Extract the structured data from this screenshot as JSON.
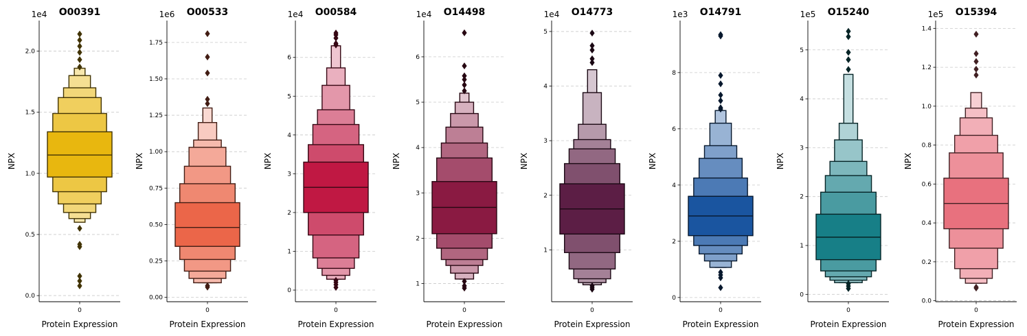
{
  "chart_data": [
    {
      "type": "boxen",
      "title": "O00391",
      "xlabel": "Protein Expression",
      "ylabel": "NPX",
      "category": "0",
      "exponent_label": "1e4",
      "ylim": [
        -0.05,
        2.25
      ],
      "yticks": [
        0.0,
        0.5,
        1.0,
        1.5,
        2.0
      ],
      "ytick_labels": [
        "0.0",
        "0.5",
        "1.0",
        "1.5",
        "2.0"
      ],
      "grid": true,
      "color": "#E8B70F",
      "median": 1.15,
      "q1": 0.97,
      "q3": 1.34,
      "lower_boxes": [
        0.85,
        0.75,
        0.68,
        0.63,
        0.6
      ],
      "upper_boxes": [
        1.49,
        1.62,
        1.7,
        1.8,
        1.86
      ],
      "outliers": [
        0.08,
        0.12,
        0.16,
        0.4,
        0.42,
        0.55,
        1.87,
        1.93,
        1.99,
        2.04,
        2.09,
        2.14
      ]
    },
    {
      "type": "boxen",
      "title": "O00533",
      "xlabel": "Protein Expression",
      "ylabel": "NPX",
      "category": "0",
      "exponent_label": "1e6",
      "ylim": [
        -0.03,
        1.9
      ],
      "yticks": [
        0.0,
        0.25,
        0.5,
        0.75,
        1.0,
        1.25,
        1.5,
        1.75
      ],
      "ytick_labels": [
        "0.00",
        "0.25",
        "0.50",
        "0.75",
        "1.00",
        "1.25",
        "1.50",
        "1.75"
      ],
      "grid": true,
      "color": "#EB6649",
      "median": 0.48,
      "q1": 0.35,
      "q3": 0.65,
      "lower_boxes": [
        0.26,
        0.18,
        0.13,
        0.1
      ],
      "upper_boxes": [
        0.78,
        0.9,
        1.03,
        1.08,
        1.2,
        1.3
      ],
      "outliers": [
        0.07,
        0.08,
        1.33,
        1.36,
        1.54,
        1.65,
        1.81
      ]
    },
    {
      "type": "boxen",
      "title": "O00584",
      "xlabel": "Protein Expression",
      "ylabel": "NPX",
      "category": "0",
      "exponent_label": "1e4",
      "ylim": [
        -0.3,
        6.95
      ],
      "yticks": [
        0,
        1,
        2,
        3,
        4,
        5,
        6
      ],
      "ytick_labels": [
        "0",
        "1",
        "2",
        "3",
        "4",
        "5",
        "6"
      ],
      "grid": true,
      "color": "#C01843",
      "median": 2.65,
      "q1": 2.0,
      "q3": 3.3,
      "lower_boxes": [
        1.42,
        0.83,
        0.56,
        0.38,
        0.28
      ],
      "upper_boxes": [
        3.75,
        4.27,
        4.65,
        5.28,
        5.73,
        6.3
      ],
      "outliers": [
        0.07,
        0.14,
        0.2,
        0.25,
        6.32,
        6.36,
        6.5,
        6.58,
        6.63
      ]
    },
    {
      "type": "boxen",
      "title": "O14498",
      "xlabel": "Protein Expression",
      "ylabel": "NPX",
      "category": "0",
      "exponent_label": "1e4",
      "ylim": [
        0.6,
        6.8
      ],
      "yticks": [
        1,
        2,
        3,
        4,
        5,
        6
      ],
      "ytick_labels": [
        "1",
        "2",
        "3",
        "4",
        "5",
        "6"
      ],
      "grid": true,
      "color": "#8A1A42",
      "median": 2.68,
      "q1": 2.1,
      "q3": 3.25,
      "lower_boxes": [
        1.78,
        1.53,
        1.4,
        1.23,
        1.1
      ],
      "upper_boxes": [
        3.77,
        4.1,
        4.45,
        4.75,
        5.0,
        5.2
      ],
      "outliers": [
        0.9,
        0.95,
        1.05,
        5.25,
        5.38,
        5.5,
        5.58,
        5.8,
        6.53
      ]
    },
    {
      "type": "boxen",
      "title": "O14773",
      "xlabel": "Protein Expression",
      "ylabel": "NPX",
      "category": "0",
      "exponent_label": "1e4",
      "ylim": [
        0.05,
        5.2
      ],
      "yticks": [
        1,
        2,
        3,
        4,
        5
      ],
      "ytick_labels": [
        "1",
        "2",
        "3",
        "4",
        "5"
      ],
      "grid": true,
      "color": "#5C1E45",
      "median": 1.75,
      "q1": 1.29,
      "q3": 2.21,
      "lower_boxes": [
        0.95,
        0.65,
        0.47,
        0.4,
        0.36
      ],
      "upper_boxes": [
        2.58,
        2.85,
        3.02,
        3.3,
        3.88,
        4.3
      ],
      "outliers": [
        0.28,
        0.31,
        0.34,
        4.43,
        4.5,
        4.66,
        4.74,
        4.97
      ]
    },
    {
      "type": "boxen",
      "title": "O14791",
      "xlabel": "Protein Expression",
      "ylabel": "NPX",
      "category": "0",
      "exponent_label": "1e3",
      "ylim": [
        -0.15,
        9.85
      ],
      "yticks": [
        0,
        2,
        4,
        6,
        8
      ],
      "ytick_labels": [
        "0",
        "2",
        "4",
        "6",
        "8"
      ],
      "grid": true,
      "color": "#1A55A0",
      "median": 2.9,
      "q1": 2.2,
      "q3": 3.6,
      "lower_boxes": [
        1.85,
        1.55,
        1.3,
        1.07
      ],
      "upper_boxes": [
        4.25,
        4.95,
        5.4,
        6.2,
        6.65
      ],
      "outliers": [
        0.35,
        0.7,
        0.8,
        0.9,
        6.7,
        6.75,
        7.0,
        7.2,
        7.6,
        7.9,
        9.3,
        9.35
      ]
    },
    {
      "type": "boxen",
      "title": "O15240",
      "xlabel": "Protein Expression",
      "ylabel": "NPX",
      "category": "0",
      "exponent_label": "1e5",
      "ylim": [
        -0.15,
        5.6
      ],
      "yticks": [
        0,
        1,
        2,
        3,
        4,
        5
      ],
      "ytick_labels": [
        "0",
        "1",
        "2",
        "3",
        "4",
        "5"
      ],
      "grid": true,
      "color": "#177F87",
      "median": 1.17,
      "q1": 0.71,
      "q3": 1.64,
      "lower_boxes": [
        0.48,
        0.36,
        0.29,
        0.24
      ],
      "upper_boxes": [
        2.09,
        2.43,
        2.72,
        3.16,
        3.5,
        4.5
      ],
      "outliers": [
        0.12,
        0.17,
        0.22,
        4.6,
        4.8,
        4.95,
        5.27,
        5.38
      ]
    },
    {
      "type": "boxen",
      "title": "O15394",
      "xlabel": "Protein Expression",
      "ylabel": "NPX",
      "category": "0",
      "exponent_label": "1e5",
      "ylim": [
        -0.005,
        1.44
      ],
      "yticks": [
        0.0,
        0.2,
        0.4,
        0.6,
        0.8,
        1.0,
        1.2,
        1.4
      ],
      "ytick_labels": [
        "0.0",
        "0.2",
        "0.4",
        "0.6",
        "0.8",
        "1.0",
        "1.2",
        "1.4"
      ],
      "grid": true,
      "color": "#E8717E",
      "median": 0.5,
      "q1": 0.37,
      "q3": 0.63,
      "lower_boxes": [
        0.27,
        0.165,
        0.115,
        0.09
      ],
      "upper_boxes": [
        0.76,
        0.85,
        0.94,
        0.99,
        1.07
      ],
      "outliers": [
        0.065,
        0.07,
        1.16,
        1.19,
        1.23,
        1.27,
        1.37
      ]
    }
  ]
}
